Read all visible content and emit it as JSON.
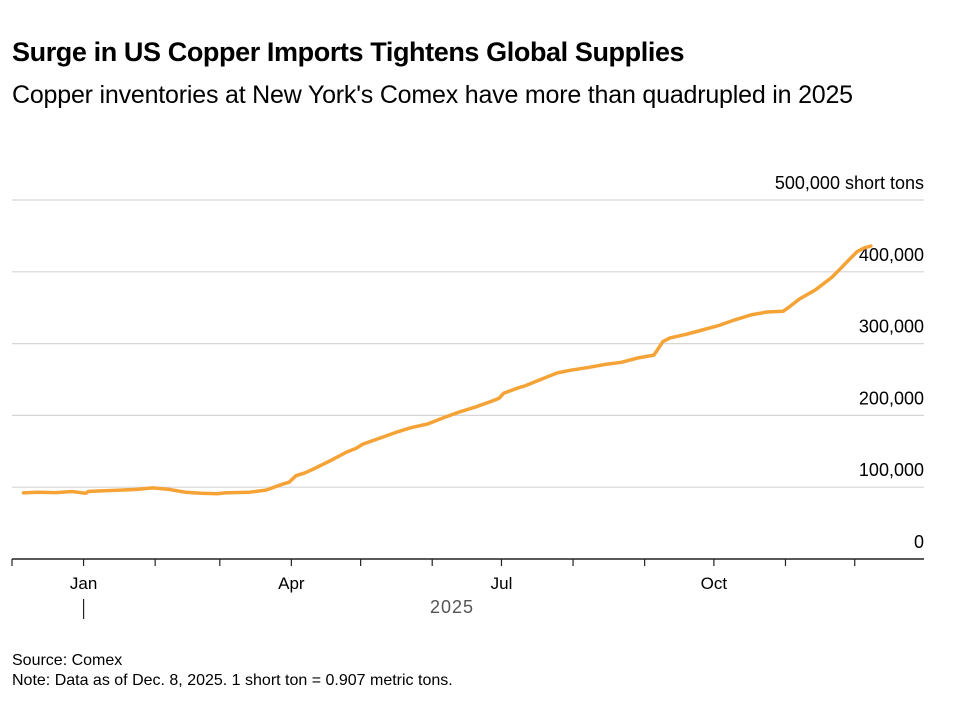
{
  "title": "Surge in US Copper Imports Tightens Global Supplies",
  "subtitle": "Copper inventories at New York's Comex have more than quadrupled in 2025",
  "footer": {
    "source": "Source: Comex",
    "note": "Note: Data as of Dec. 8, 2025. 1 short ton = 0.907 metric tons."
  },
  "colors": {
    "line": "#f5a336",
    "grid": "#d6d6d6",
    "axis": "#222222",
    "text": "#000000",
    "year_label": "#555555"
  },
  "chart_data": {
    "type": "line",
    "title": "Surge in US Copper Imports Tightens Global Supplies",
    "subtitle": "Copper inventories at New York's Comex have more than quadrupled in 2025",
    "xlabel": "2025",
    "ylabel": "",
    "y_unit": "short tons",
    "xlim": [
      "2024-12-01",
      "2025-12-31"
    ],
    "ylim": [
      0,
      500000
    ],
    "y_ticks": [
      {
        "value": 0,
        "label": "0"
      },
      {
        "value": 100000,
        "label": "100,000"
      },
      {
        "value": 200000,
        "label": "200,000"
      },
      {
        "value": 300000,
        "label": "300,000"
      },
      {
        "value": 400000,
        "label": "400,000"
      },
      {
        "value": 500000,
        "label": "500,000 short tons"
      }
    ],
    "x_ticks": [
      {
        "date": "2024-12-01",
        "label": ""
      },
      {
        "date": "2025-01-01",
        "label": "Jan"
      },
      {
        "date": "2025-02-01",
        "label": ""
      },
      {
        "date": "2025-03-01",
        "label": ""
      },
      {
        "date": "2025-04-01",
        "label": "Apr"
      },
      {
        "date": "2025-05-01",
        "label": ""
      },
      {
        "date": "2025-06-01",
        "label": ""
      },
      {
        "date": "2025-07-01",
        "label": "Jul"
      },
      {
        "date": "2025-08-01",
        "label": ""
      },
      {
        "date": "2025-09-01",
        "label": ""
      },
      {
        "date": "2025-10-01",
        "label": "Oct"
      },
      {
        "date": "2025-11-01",
        "label": ""
      },
      {
        "date": "2025-12-01",
        "label": ""
      }
    ],
    "year_label": "2025",
    "year_marker_date": "2025-01-01",
    "grid": true,
    "legend": "none",
    "series": [
      {
        "x": [
          "2024-12-06",
          "2024-12-12",
          "2024-12-20",
          "2024-12-27",
          "2025-01-02",
          "2025-01-03",
          "2025-01-06",
          "2025-01-10",
          "2025-01-17",
          "2025-01-24",
          "2025-01-31",
          "2025-02-07",
          "2025-02-14",
          "2025-02-21",
          "2025-02-28",
          "2025-03-03",
          "2025-03-07",
          "2025-03-14",
          "2025-03-21",
          "2025-03-28",
          "2025-03-31",
          "2025-04-03",
          "2025-04-07",
          "2025-04-11",
          "2025-04-18",
          "2025-04-25",
          "2025-04-29",
          "2025-05-02",
          "2025-05-09",
          "2025-05-16",
          "2025-05-23",
          "2025-05-30",
          "2025-06-06",
          "2025-06-13",
          "2025-06-20",
          "2025-06-27",
          "2025-06-30",
          "2025-07-02",
          "2025-07-08",
          "2025-07-11",
          "2025-07-18",
          "2025-07-25",
          "2025-07-31",
          "2025-08-08",
          "2025-08-15",
          "2025-08-22",
          "2025-08-29",
          "2025-09-05",
          "2025-09-09",
          "2025-09-12",
          "2025-09-19",
          "2025-09-26",
          "2025-10-03",
          "2025-10-10",
          "2025-10-17",
          "2025-10-24",
          "2025-10-31",
          "2025-11-03",
          "2025-11-07",
          "2025-11-14",
          "2025-11-21",
          "2025-11-25",
          "2025-11-28",
          "2025-12-02",
          "2025-12-05",
          "2025-12-08"
        ],
        "y": [
          92000,
          93000,
          92500,
          94000,
          91500,
          94000,
          94500,
          95000,
          96000,
          97000,
          99000,
          97000,
          93000,
          91500,
          91000,
          92000,
          92500,
          93000,
          96000,
          104000,
          107000,
          116000,
          120000,
          126000,
          137000,
          149000,
          154000,
          160000,
          168000,
          176000,
          183000,
          188000,
          197000,
          205000,
          212000,
          220000,
          224000,
          231000,
          238000,
          241000,
          250000,
          259000,
          263000,
          267000,
          271000,
          274000,
          280000,
          284000,
          303000,
          308000,
          313000,
          319000,
          325000,
          333000,
          340000,
          344000,
          345000,
          352000,
          362000,
          375000,
          392000,
          405000,
          415000,
          428000,
          433000,
          436000
        ]
      }
    ]
  }
}
